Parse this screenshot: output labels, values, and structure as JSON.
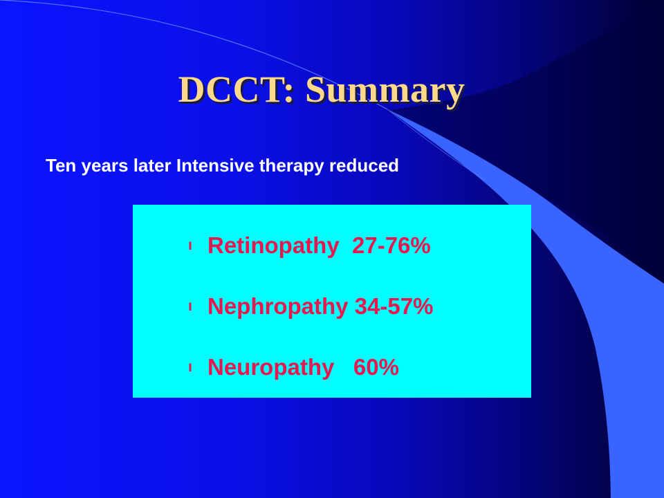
{
  "slide": {
    "title": "DCCT: Summary",
    "subtitle": "Ten years later Intensive therapy reduced",
    "bullets": [
      {
        "text": "Retinopathy  27-76%"
      },
      {
        "text": "Nephropathy 34-57%"
      },
      {
        "text": "Neuropathy   60%"
      }
    ],
    "bullet_glyph": "ⵏ"
  },
  "colors": {
    "background_left": "#0a14ff",
    "background_right": "#000030",
    "accent_shape": "#3a64ff",
    "title": "#ffd98a",
    "subtitle": "#ffffff",
    "box": "#00ffff",
    "bullet_text": "#e8174e"
  }
}
